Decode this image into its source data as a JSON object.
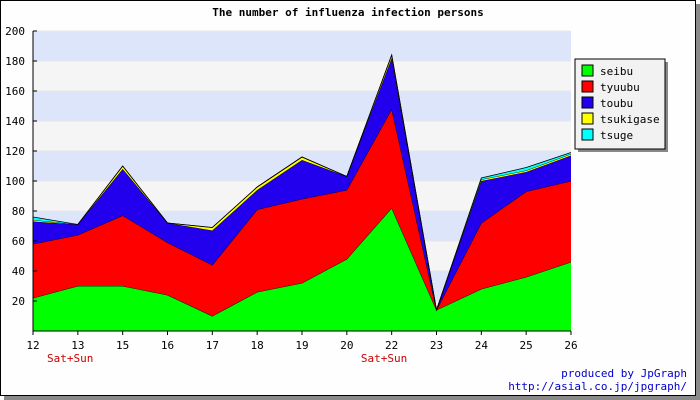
{
  "chart_data": {
    "type": "area",
    "stacked": true,
    "title": "The number of influenza infection persons",
    "x": [
      "12",
      "13",
      "15",
      "16",
      "17",
      "18",
      "19",
      "20",
      "22",
      "23",
      "24",
      "25",
      "26"
    ],
    "x_notes": [
      {
        "x": "12",
        "text": "Sat+Sun"
      },
      {
        "x": "20",
        "text": "Sat+Sun"
      }
    ],
    "ylim": [
      0,
      200
    ],
    "yticks": [
      20,
      40,
      60,
      80,
      100,
      120,
      140,
      160,
      180,
      200
    ],
    "grid": true,
    "legend_position": "right",
    "series": [
      {
        "name": "seibu",
        "color": "#00ff00",
        "values": [
          22,
          30,
          30,
          24,
          10,
          26,
          32,
          48,
          82,
          14,
          28,
          36,
          46
        ]
      },
      {
        "name": "tyuubu",
        "color": "#ff0000",
        "values": [
          36,
          34,
          47,
          35,
          34,
          55,
          56,
          46,
          66,
          0,
          44,
          57,
          54
        ]
      },
      {
        "name": "toubu",
        "color": "#2200ee",
        "values": [
          15,
          7,
          31,
          13,
          23,
          13,
          26,
          9,
          34,
          0,
          28,
          13,
          17
        ]
      },
      {
        "name": "tsukigase",
        "color": "#ffff00",
        "values": [
          1,
          0,
          2,
          0,
          2,
          2,
          2,
          0,
          2,
          0,
          1,
          1,
          1
        ]
      },
      {
        "name": "tsuge",
        "color": "#00ffff",
        "values": [
          2,
          0,
          0,
          0,
          0,
          0,
          0,
          0,
          0,
          0,
          1,
          2,
          1
        ]
      }
    ]
  },
  "credit": {
    "line1": "produced by JpGraph",
    "line2": "http://asial.co.jp/jpgraph/"
  }
}
